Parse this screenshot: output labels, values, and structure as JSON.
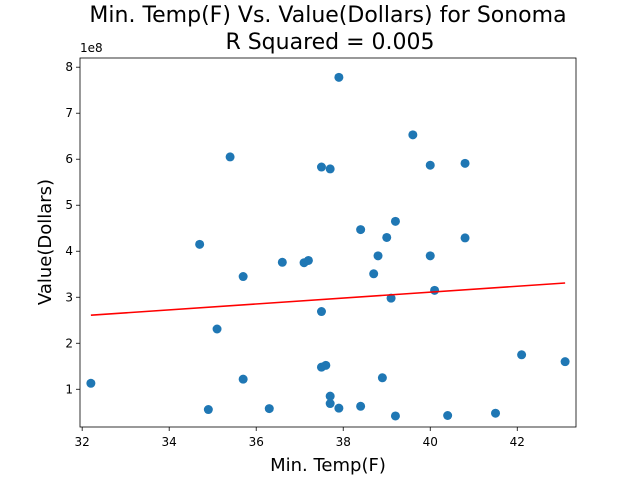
{
  "chart_data": {
    "type": "scatter",
    "title": "Min. Temp(F) Vs. Value(Dollars) for Sonoma",
    "subtitle": "R Squared =  0.005",
    "xlabel": "Min. Temp(F)",
    "ylabel": "Value(Dollars)",
    "y_scale_label": "1e8",
    "xlim": [
      31.95,
      43.35
    ],
    "ylim": [
      0.18,
      8.2
    ],
    "x_ticks": [
      32,
      34,
      36,
      38,
      40,
      42
    ],
    "y_ticks": [
      1,
      2,
      3,
      4,
      5,
      6,
      7,
      8
    ],
    "y_unit_multiplier": 100000000,
    "grid": false,
    "point_color": "#1f77b4",
    "line_color": "#ff0000",
    "points": [
      {
        "x": 32.2,
        "y": 1.13
      },
      {
        "x": 34.7,
        "y": 4.15
      },
      {
        "x": 34.9,
        "y": 0.56
      },
      {
        "x": 35.1,
        "y": 2.31
      },
      {
        "x": 35.4,
        "y": 6.05
      },
      {
        "x": 35.7,
        "y": 3.45
      },
      {
        "x": 35.7,
        "y": 1.22
      },
      {
        "x": 36.3,
        "y": 0.58
      },
      {
        "x": 36.6,
        "y": 3.76
      },
      {
        "x": 37.1,
        "y": 3.75
      },
      {
        "x": 37.2,
        "y": 3.8
      },
      {
        "x": 37.5,
        "y": 5.83
      },
      {
        "x": 37.5,
        "y": 2.69
      },
      {
        "x": 37.5,
        "y": 1.48
      },
      {
        "x": 37.6,
        "y": 1.52
      },
      {
        "x": 37.7,
        "y": 5.79
      },
      {
        "x": 37.7,
        "y": 0.85
      },
      {
        "x": 37.7,
        "y": 0.69
      },
      {
        "x": 37.9,
        "y": 7.78
      },
      {
        "x": 37.9,
        "y": 0.59
      },
      {
        "x": 38.4,
        "y": 4.47
      },
      {
        "x": 38.4,
        "y": 0.63
      },
      {
        "x": 38.7,
        "y": 3.51
      },
      {
        "x": 38.8,
        "y": 3.9
      },
      {
        "x": 38.9,
        "y": 1.25
      },
      {
        "x": 39.0,
        "y": 4.3
      },
      {
        "x": 39.1,
        "y": 2.98
      },
      {
        "x": 39.2,
        "y": 4.65
      },
      {
        "x": 39.2,
        "y": 0.42
      },
      {
        "x": 39.6,
        "y": 6.53
      },
      {
        "x": 40.0,
        "y": 5.87
      },
      {
        "x": 40.0,
        "y": 3.9
      },
      {
        "x": 40.1,
        "y": 3.15
      },
      {
        "x": 40.4,
        "y": 0.43
      },
      {
        "x": 40.8,
        "y": 5.91
      },
      {
        "x": 40.8,
        "y": 4.29
      },
      {
        "x": 41.5,
        "y": 0.48
      },
      {
        "x": 42.1,
        "y": 1.75
      },
      {
        "x": 43.1,
        "y": 1.6
      }
    ],
    "regression_line": {
      "x": [
        32.2,
        43.1
      ],
      "y": [
        2.61,
        3.31
      ]
    }
  }
}
